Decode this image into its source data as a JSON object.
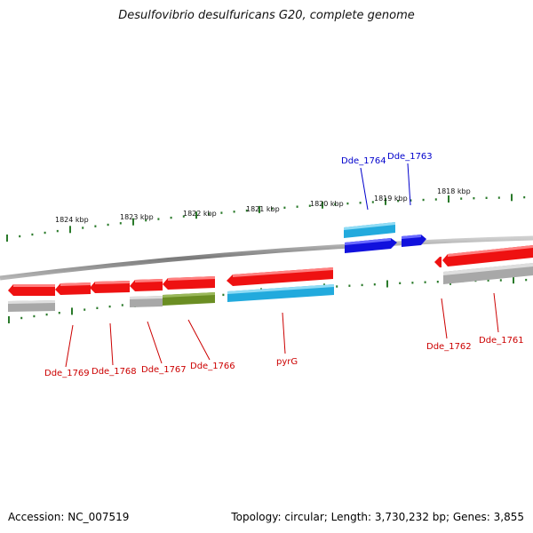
{
  "title": "Desulfovibrio desulfuricans G20, complete genome",
  "footer": {
    "accession": "Accession: NC_007519",
    "topology": "Topology: circular; Length: 3,730,232 bp; Genes: 3,855"
  },
  "colors": {
    "backbone": "#808080",
    "ticks": "#2a7a2a",
    "red_gene": "#ee1111",
    "cyan_gene": "#22aadd",
    "blue_gene": "#1111dd",
    "gray_gene": "#a8a8a8",
    "olive_gene": "#6b8e23",
    "label_red": "#cc0000",
    "label_blue": "#0000cc"
  },
  "ticks": {
    "labels": [
      "1824 kbp",
      "1823 kbp",
      "1822 kbp",
      "1821 kbp",
      "1820 kbp",
      "1819 kbp",
      "1818 kbp"
    ]
  },
  "genes": {
    "labels_below": [
      "Dde_1769",
      "Dde_1768",
      "Dde_1767",
      "Dde_1766",
      "pyrG",
      "Dde_1762",
      "Dde_1761"
    ],
    "labels_above": [
      "Dde_1764",
      "Dde_1763"
    ]
  }
}
